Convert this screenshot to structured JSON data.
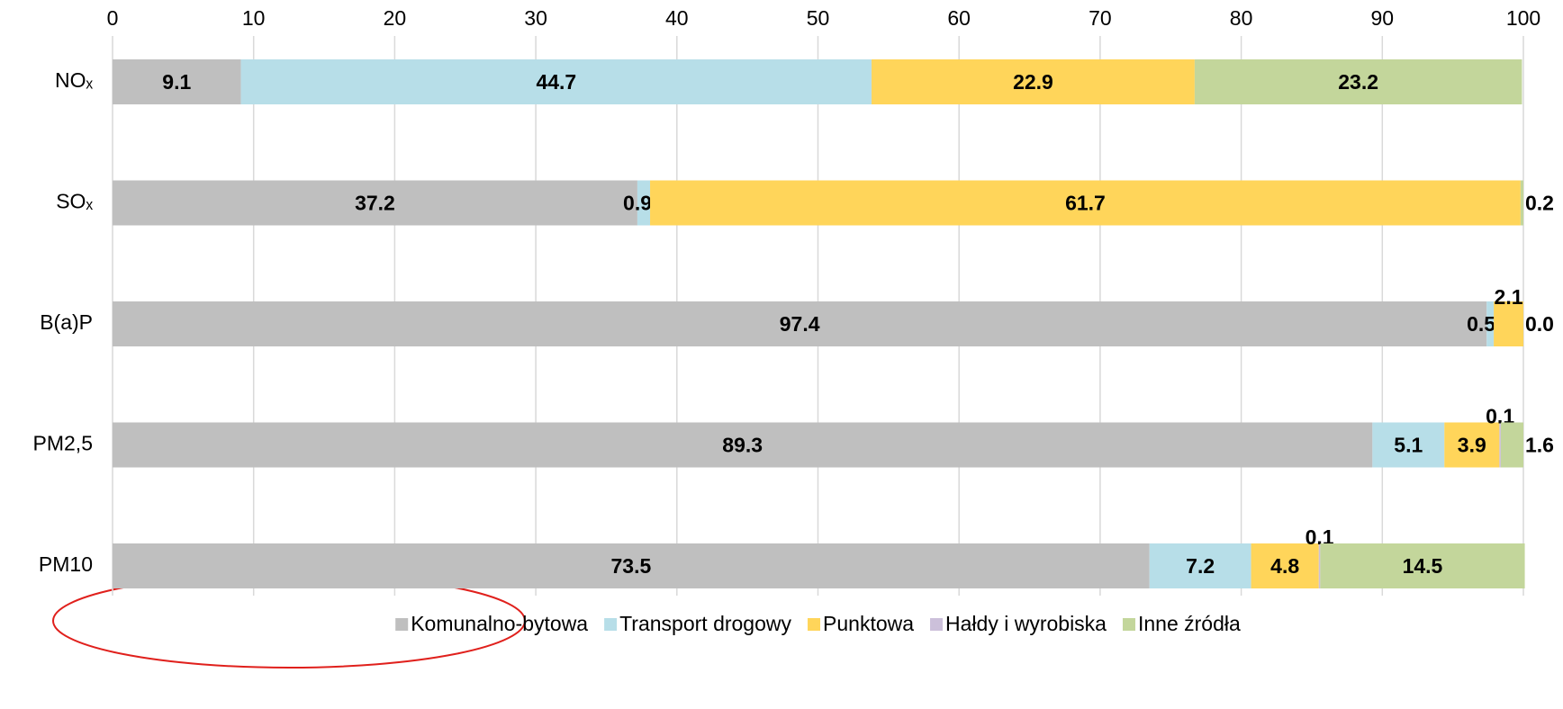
{
  "chart_data": {
    "type": "stacked_bar_horizontal",
    "categories": [
      "NOₓ",
      "SOₓ",
      "B(a)P",
      "PM2,5",
      "PM10"
    ],
    "series": [
      {
        "name": "Komunalno-bytowa",
        "color": "#bfbfbf",
        "values": [
          9.1,
          37.2,
          97.4,
          89.3,
          73.5
        ]
      },
      {
        "name": "Transport drogowy",
        "color": "#b7dee8",
        "values": [
          44.7,
          0.9,
          0.5,
          5.1,
          7.2
        ]
      },
      {
        "name": "Punktowa",
        "color": "#ffd55a",
        "values": [
          22.9,
          61.7,
          2.1,
          3.9,
          4.8
        ]
      },
      {
        "name": "Hałdy i wyrobiska",
        "color": "#ccc0da",
        "values": [
          null,
          null,
          null,
          0.1,
          0.1
        ]
      },
      {
        "name": "Inne źródła",
        "color": "#c3d69b",
        "values": [
          23.2,
          0.2,
          0,
          1.6,
          14.5
        ],
        "value_labels": [
          "23.2",
          "0.2",
          "0.0",
          "1.6",
          "14.5"
        ]
      }
    ],
    "xlim": [
      0,
      100
    ],
    "xticks": [
      0,
      10,
      20,
      30,
      40,
      50,
      60,
      70,
      80,
      90,
      100
    ],
    "grid": true,
    "legend": "bottom"
  }
}
